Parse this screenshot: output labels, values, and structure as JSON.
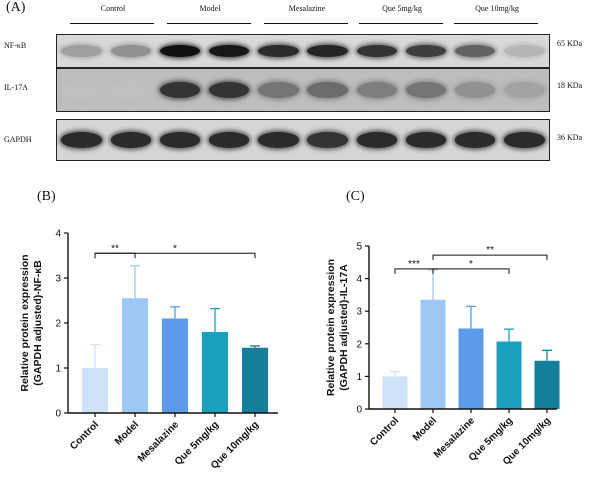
{
  "panel_a": {
    "label": "(A)",
    "groups": [
      "Control",
      "Model",
      "Mesalazine",
      "Que 5mg/kg",
      "Que 10mg/kg"
    ],
    "rows": [
      {
        "label": "NF-κB",
        "kda": "65 KDa",
        "intensity": [
          0.22,
          0.3,
          1.0,
          0.95,
          0.85,
          0.88,
          0.8,
          0.75,
          0.55,
          0.1
        ]
      },
      {
        "label": "IL-17A",
        "kda": "18 KDa",
        "intensity": [
          0.05,
          0.05,
          0.8,
          0.8,
          0.45,
          0.5,
          0.4,
          0.45,
          0.3,
          0.2
        ]
      },
      {
        "label": "GAPDH",
        "kda": "36 KDa",
        "intensity": [
          0.85,
          0.85,
          0.85,
          0.85,
          0.85,
          0.8,
          0.85,
          0.85,
          0.85,
          0.85
        ]
      }
    ]
  },
  "panel_b": {
    "label": "(B)"
  },
  "panel_c": {
    "label": "(C)"
  },
  "chart_data": [
    {
      "type": "bar",
      "categories": [
        "Control",
        "Model",
        "Mesalazine",
        "Que 5mg/kg",
        "Que 10mg/kg"
      ],
      "values": [
        1.0,
        2.55,
        2.1,
        1.8,
        1.45
      ],
      "errors": [
        0.52,
        0.72,
        0.26,
        0.52,
        0.04
      ],
      "ylabel": "Relative protein expression\n(GAPDH adjusted)-NF-κB",
      "ylim": [
        0,
        4
      ],
      "yticks": [
        "0",
        "1",
        "2",
        "3",
        "4"
      ],
      "colors": [
        "#cfe3f8",
        "#9cc8f3",
        "#5b9bea",
        "#1aa0bf",
        "#137f9b"
      ],
      "annotations": [
        {
          "from": 0,
          "to": 1,
          "text": "**",
          "y": 3.55
        },
        {
          "from": 0,
          "to": 4,
          "text": "*",
          "y": 3.55
        }
      ]
    },
    {
      "type": "bar",
      "categories": [
        "Control",
        "Model",
        "Mesalazine",
        "Que 5mg/kg",
        "Que 10mg/kg"
      ],
      "values": [
        1.0,
        3.35,
        2.47,
        2.07,
        1.48
      ],
      "errors": [
        0.15,
        0.92,
        0.68,
        0.38,
        0.32
      ],
      "ylabel": "Relative protein expression\n(GAPDH adjusted)-IL-17A",
      "ylim": [
        0,
        5
      ],
      "yticks": [
        "0",
        "1",
        "2",
        "3",
        "4",
        "5"
      ],
      "colors": [
        "#cfe3f8",
        "#9cc8f3",
        "#5b9bea",
        "#1aa0bf",
        "#137f9b"
      ],
      "annotations": [
        {
          "from": 0,
          "to": 1,
          "text": "***",
          "y": 4.3
        },
        {
          "from": 1,
          "to": 3,
          "text": "*",
          "y": 4.3
        },
        {
          "from": 1,
          "to": 4,
          "text": "**",
          "y": 4.72
        }
      ]
    }
  ]
}
